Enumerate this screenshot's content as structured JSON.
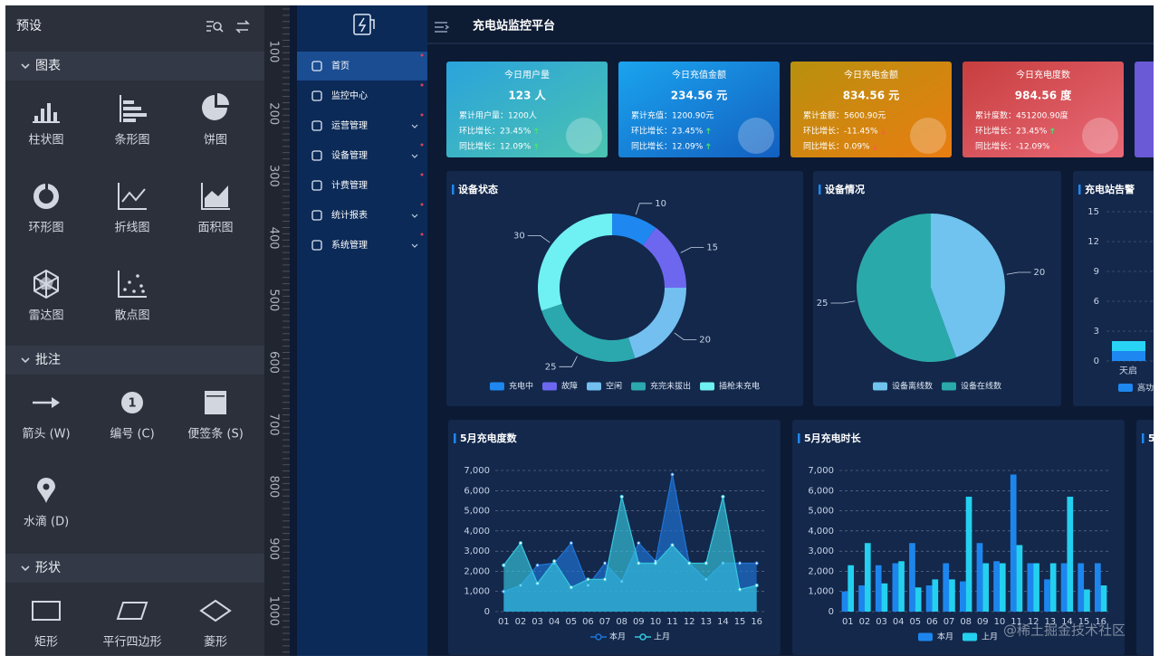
{
  "left_panel": {
    "title": "预设",
    "sections": [
      {
        "title": "图表",
        "items": [
          {
            "label": "柱状图"
          },
          {
            "label": "条形图"
          },
          {
            "label": "饼图"
          },
          {
            "label": "环形图"
          },
          {
            "label": "折线图"
          },
          {
            "label": "面积图"
          },
          {
            "label": "雷达图"
          },
          {
            "label": "散点图"
          }
        ]
      },
      {
        "title": "批注",
        "items": [
          {
            "label": "箭头 (W)"
          },
          {
            "label": "编号 (C)",
            "badge": "1"
          },
          {
            "label": "便签条 (S)"
          },
          {
            "label": "水滴 (D)"
          }
        ]
      },
      {
        "title": "形状",
        "items": [
          {
            "label": "矩形"
          },
          {
            "label": "平行四边形"
          },
          {
            "label": "菱形"
          }
        ]
      }
    ]
  },
  "ruler": {
    "labels": [
      100,
      200,
      300,
      400,
      500,
      600,
      700,
      800,
      900,
      1000
    ]
  },
  "app": {
    "title": "充电站监控平台",
    "menu": [
      "首页",
      "监控中心",
      "运营管理",
      "设备管理",
      "计费管理",
      "统计报表",
      "系统管理"
    ],
    "cards": [
      {
        "title": "今日用户量",
        "value": "123 人",
        "lines": [
          "累计用户量：1200人",
          "环比增长：23.45%",
          "同比增长：12.09%"
        ]
      },
      {
        "title": "今日充值金额",
        "value": "234.56 元",
        "lines": [
          "累计充值：1200.90元",
          "环比增长：23.45%",
          "同比增长：12.09%"
        ]
      },
      {
        "title": "今日充电金额",
        "value": "834.56 元",
        "lines": [
          "累计金额：5600.90元",
          "环比增长：-11.45%",
          "同比增长：0.09%"
        ]
      },
      {
        "title": "今日充电度数",
        "value": "984.56 度",
        "lines": [
          "累计度数：451200.90度",
          "环比增长：23.45%",
          "同比增长：-12.09%"
        ]
      }
    ],
    "charts": [
      {
        "type": "donut",
        "title": "设备状态",
        "categories": [
          "充电中",
          "故障",
          "空闲",
          "充完未拔出",
          "插枪未充电"
        ],
        "values": [
          10,
          15,
          20,
          25,
          30
        ],
        "colors": [
          "#1e88f0",
          "#6d67f0",
          "#72bff0",
          "#2ba8ad",
          "#6ff0f2"
        ]
      },
      {
        "type": "pie",
        "title": "设备情况",
        "categories": [
          "设备离线数",
          "设备在线数"
        ],
        "values": [
          20,
          25
        ],
        "colors": [
          "#6fc3ee",
          "#2aa9aa"
        ]
      },
      {
        "type": "stacked_bar",
        "title": "充电站告警",
        "categories": [
          "天启"
        ],
        "ylim": [
          0,
          15
        ],
        "yticks": [
          0,
          3,
          6,
          9,
          12,
          15
        ],
        "series": [
          {
            "name": "高功",
            "color": "#1e88f0",
            "values": [
              1
            ]
          },
          {
            "color": "#29d3f5",
            "values": [
              1
            ]
          }
        ]
      },
      {
        "type": "area",
        "title": "5月充电度数",
        "categories": [
          "01",
          "02",
          "03",
          "04",
          "05",
          "06",
          "07",
          "08",
          "09",
          "10",
          "11",
          "12",
          "13",
          "14",
          "15",
          "16"
        ],
        "ylim": [
          0,
          7000
        ],
        "yticks": [
          0,
          {
            "value": 1000,
            "label": "1,000"
          },
          {
            "value": 2000,
            "label": "2,000"
          },
          {
            "value": 3000,
            "label": "3,000"
          },
          {
            "value": 4000,
            "label": "4,000"
          },
          {
            "value": 5000,
            "label": "5,000"
          },
          {
            "value": 6000,
            "label": "6,000"
          },
          {
            "value": 7000,
            "label": "7,000"
          }
        ],
        "grid": true,
        "series": [
          {
            "name": "本月",
            "color": "#1f74d8",
            "values": [
              1000,
              1300,
              2300,
              2400,
              3400,
              1300,
              2400,
              1500,
              3400,
              2500,
              6800,
              2400,
              1600,
              2400,
              2400,
              2400
            ]
          },
          {
            "name": "上月",
            "color": "#36c6de",
            "values": [
              2300,
              3400,
              1400,
              2500,
              1200,
              1600,
              1600,
              5700,
              2400,
              2400,
              3300,
              2400,
              2400,
              5700,
              1100,
              1300
            ]
          }
        ]
      },
      {
        "type": "bar",
        "title": "5月充电时长",
        "categories": [
          "01",
          "02",
          "03",
          "04",
          "05",
          "06",
          "07",
          "08",
          "09",
          "10",
          "11",
          "12",
          "13",
          "14",
          "15",
          "16"
        ],
        "ylim": [
          0,
          7000
        ],
        "yticks": [
          0,
          {
            "value": 1000,
            "label": "1,000"
          },
          {
            "value": 2000,
            "label": "2,000"
          },
          {
            "value": 3000,
            "label": "3,000"
          },
          {
            "value": 4000,
            "label": "4,000"
          },
          {
            "value": 5000,
            "label": "5,000"
          },
          {
            "value": 6000,
            "label": "6,000"
          },
          {
            "value": 7000,
            "label": "7,000"
          }
        ],
        "grid": true,
        "series": [
          {
            "name": "本月",
            "color": "#1d86ee",
            "values": [
              1000,
              1300,
              2300,
              2400,
              3400,
              1300,
              2400,
              1500,
              3400,
              2500,
              6800,
              2400,
              1600,
              2400,
              2400,
              2400
            ]
          },
          {
            "name": "上月",
            "color": "#24d0f0",
            "values": [
              2300,
              3400,
              1400,
              2500,
              1200,
              1600,
              1600,
              5700,
              2400,
              2400,
              3300,
              2400,
              2400,
              5700,
              1100,
              1300
            ]
          }
        ]
      }
    ],
    "partial_title": "5"
  },
  "watermark": "@稀土掘金技术社区"
}
